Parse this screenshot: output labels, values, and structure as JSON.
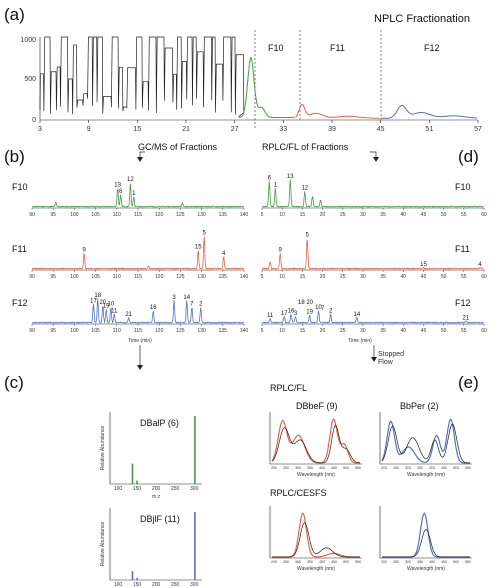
{
  "panels": {
    "a": "(a)",
    "b": "(b)",
    "c": "(c)",
    "d": "(d)",
    "e": "(e)"
  },
  "colors": {
    "F10": "#4a9a4a",
    "F11": "#e0664a",
    "F12": "#5572c0",
    "black": "#222222"
  },
  "chart_data": [
    {
      "type": "line",
      "panel": "a",
      "title": "NPLC Fractionation",
      "x_ticks": [
        "3",
        "9",
        "15",
        "21",
        "27",
        "33",
        "39",
        "45",
        "51",
        "57"
      ],
      "y_ticks": [
        "0",
        "500",
        "1000"
      ],
      "ylim": [
        0,
        1000
      ],
      "fractions": [
        {
          "name": "F10",
          "range": [
            27.5,
            34.5
          ]
        },
        {
          "name": "F11",
          "range": [
            34.5,
            45
          ]
        },
        {
          "name": "F12",
          "range": [
            45,
            57
          ]
        }
      ]
    },
    {
      "type": "line",
      "panel": "b",
      "title": "GC/MS of Fractions",
      "xlabel": "Time (min)",
      "x_ticks": [
        "90",
        "95",
        "100",
        "105",
        "110",
        "115",
        "120",
        "125",
        "130",
        "135",
        "140"
      ],
      "xlim": [
        90,
        140
      ],
      "series": [
        {
          "name": "F10",
          "peaks": [
            {
              "x": 110.2,
              "h": 0.55,
              "label": "13"
            },
            {
              "x": 110.9,
              "h": 0.35,
              "label": "6"
            },
            {
              "x": 113.2,
              "h": 0.7,
              "label": "12"
            },
            {
              "x": 114.0,
              "h": 0.3,
              "label": "1"
            },
            {
              "x": 95.6,
              "h": 0.12,
              "label": ""
            },
            {
              "x": 125.5,
              "h": 0.12,
              "label": ""
            }
          ]
        },
        {
          "name": "F11",
          "peaks": [
            {
              "x": 102.3,
              "h": 0.45,
              "label": "9"
            },
            {
              "x": 129.2,
              "h": 0.55,
              "label": "15"
            },
            {
              "x": 130.6,
              "h": 0.95,
              "label": "5"
            },
            {
              "x": 135.2,
              "h": 0.35,
              "label": "4"
            },
            {
              "x": 117.5,
              "h": 0.08,
              "label": ""
            }
          ]
        },
        {
          "name": "F12",
          "peaks": [
            {
              "x": 104.5,
              "h": 0.55,
              "label": "17"
            },
            {
              "x": 105.5,
              "h": 0.7,
              "label": "18"
            },
            {
              "x": 106.7,
              "h": 0.5,
              "label": "20"
            },
            {
              "x": 107.5,
              "h": 0.4,
              "label": "19"
            },
            {
              "x": 108.6,
              "h": 0.45,
              "label": "10"
            },
            {
              "x": 109.4,
              "h": 0.25,
              "label": "11"
            },
            {
              "x": 112.8,
              "h": 0.15,
              "label": "21"
            },
            {
              "x": 118.6,
              "h": 0.35,
              "label": "16"
            },
            {
              "x": 123.5,
              "h": 0.65,
              "label": "3"
            },
            {
              "x": 126.5,
              "h": 0.65,
              "label": "14"
            },
            {
              "x": 127.7,
              "h": 0.45,
              "label": "7"
            },
            {
              "x": 129.8,
              "h": 0.45,
              "label": "2"
            }
          ]
        }
      ]
    },
    {
      "type": "line",
      "panel": "d",
      "title": "RPLC/FL of Fractions",
      "xlabel": "Time (min)",
      "x_ticks": [
        "5",
        "10",
        "15",
        "20",
        "25",
        "30",
        "35",
        "40",
        "45",
        "50",
        "55",
        "60"
      ],
      "xlim": [
        5,
        60
      ],
      "series": [
        {
          "name": "F10",
          "peaks": [
            {
              "x": 6.8,
              "h": 0.75,
              "label": "6"
            },
            {
              "x": 8.3,
              "h": 0.55,
              "label": "1"
            },
            {
              "x": 12.0,
              "h": 0.8,
              "label": "13"
            },
            {
              "x": 15.6,
              "h": 0.45,
              "label": "12"
            },
            {
              "x": 17.5,
              "h": 0.3,
              "label": ""
            },
            {
              "x": 19.5,
              "h": 0.2,
              "label": ""
            }
          ]
        },
        {
          "name": "F11",
          "peaks": [
            {
              "x": 7.0,
              "h": 0.2,
              "label": ""
            },
            {
              "x": 9.5,
              "h": 0.45,
              "label": "9"
            },
            {
              "x": 16.2,
              "h": 0.9,
              "label": "5"
            },
            {
              "x": 45.0,
              "h": 0.03,
              "label": "15"
            },
            {
              "x": 59.0,
              "h": 0.03,
              "label": "4"
            }
          ]
        },
        {
          "name": "F12",
          "peaks": [
            {
              "x": 7.0,
              "h": 0.12,
              "label": "11"
            },
            {
              "x": 10.5,
              "h": 0.18,
              "label": "17"
            },
            {
              "x": 12.2,
              "h": 0.25,
              "label": "16"
            },
            {
              "x": 13.3,
              "h": 0.18,
              "label": "3"
            },
            {
              "x": 16.8,
              "h": 0.22,
              "label": "19"
            },
            {
              "x": 19.0,
              "h": 0.35,
              "label": "10"
            },
            {
              "x": 22.0,
              "h": 0.25,
              "label": "2"
            },
            {
              "x": 28.5,
              "h": 0.15,
              "label": "14"
            },
            {
              "x": 55.5,
              "h": 0.05,
              "label": "21"
            }
          ]
        }
      ],
      "f12_group_label": "18 20",
      "f12_group_label_7": "7"
    },
    {
      "type": "bar",
      "panel": "c",
      "ylabel": "Relative Abundance",
      "xlabel": "m z",
      "spectra": [
        {
          "name": "DBalP (6)",
          "color": "#4a9a4a",
          "x_ticks": [
            "100",
            "150",
            "200",
            "250",
            "300"
          ],
          "bars": [
            {
              "x": 138,
              "h": 0.3
            },
            {
              "x": 150,
              "h": 0.05
            },
            {
              "x": 302,
              "h": 1.0
            }
          ]
        },
        {
          "name": "DBjlF (11)",
          "color": "#5572c0",
          "x_ticks": [
            "100",
            "150",
            "200",
            "250",
            "300"
          ],
          "bars": [
            {
              "x": 138,
              "h": 0.13
            },
            {
              "x": 150,
              "h": 0.03
            },
            {
              "x": 302,
              "h": 1.0
            }
          ]
        }
      ]
    },
    {
      "type": "line",
      "panel": "e",
      "labels": {
        "stopped": "Stopped\nFlow",
        "rplc_fl": "RPLC/FL",
        "rplc_cesfs": "RPLC/CESFS",
        "xlabel": "Wavelength (nm)"
      },
      "spectra": [
        {
          "name": "DBbeF (9)",
          "color": "#e0664a",
          "x_ticks": [
            "200",
            "250",
            "300",
            "350",
            "400",
            "450",
            "500",
            "550"
          ]
        },
        {
          "name": "BbPer (2)",
          "color": "#5572c0",
          "x_ticks": [
            "200",
            "250",
            "300",
            "350",
            "400",
            "450",
            "500",
            "550"
          ]
        }
      ]
    }
  ],
  "annotations": {
    "gcms": "GC/MS of Fractions",
    "rplc": "RPLC/FL of Fractions",
    "time": "Time (min)"
  }
}
